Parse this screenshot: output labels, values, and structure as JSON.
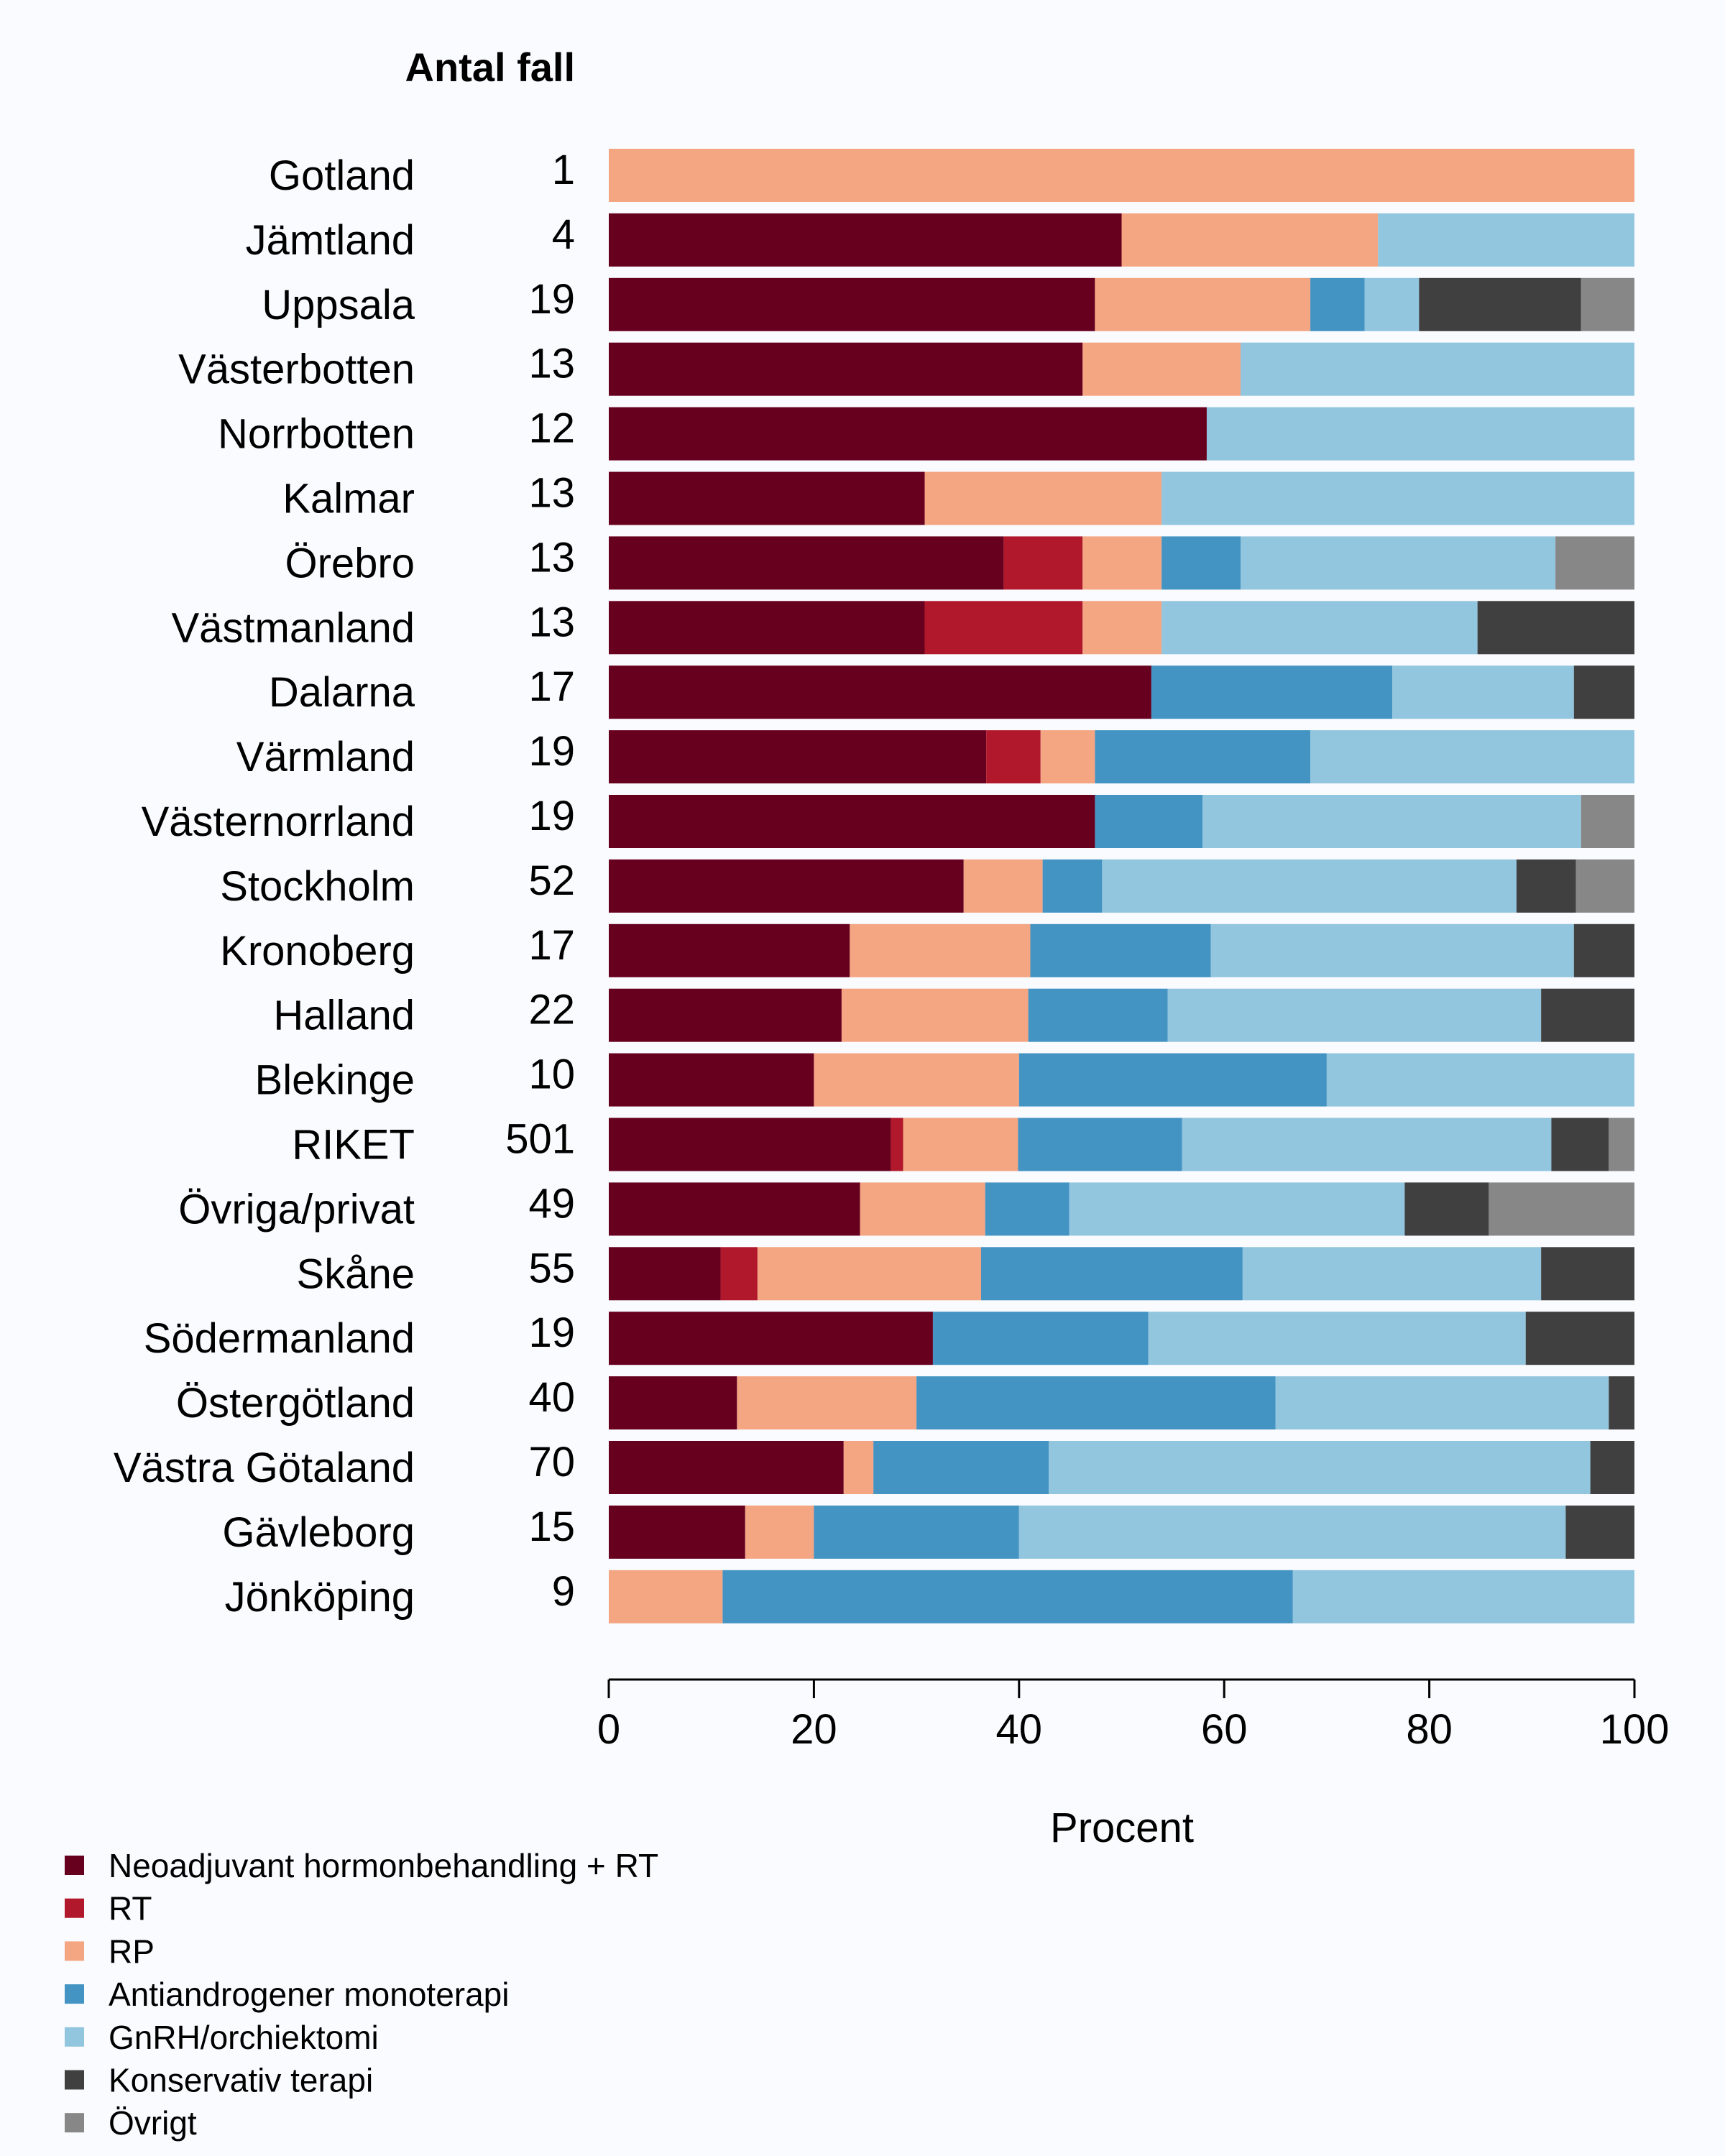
{
  "chart_data": {
    "type": "bar",
    "orientation": "horizontal",
    "stacked": true,
    "count_header": "Antal fall",
    "xlabel": "Procent",
    "xlim": [
      0,
      100
    ],
    "xticks": [
      "0",
      "20",
      "40",
      "60",
      "80",
      "100"
    ],
    "legend_position": "bottom-left",
    "grid": false,
    "series": [
      {
        "name": "Neoadjuvant hormonbehandling + RT",
        "color": "#67001f"
      },
      {
        "name": "RT",
        "color": "#b2182b"
      },
      {
        "name": "RP",
        "color": "#f4a582"
      },
      {
        "name": "Antiandrogener monoterapi",
        "color": "#4393c3"
      },
      {
        "name": "GnRH/orchiektomi",
        "color": "#92c5de"
      },
      {
        "name": "Konservativ terapi",
        "color": "#404040"
      },
      {
        "name": "Övrigt",
        "color": "#878787"
      }
    ],
    "rows": [
      {
        "label": "Gotland",
        "count": "1",
        "values": [
          0,
          0,
          100,
          0,
          0,
          0,
          0
        ]
      },
      {
        "label": "Jämtland",
        "count": "4",
        "values": [
          50,
          0,
          25,
          0,
          25,
          0,
          0
        ]
      },
      {
        "label": "Uppsala",
        "count": "19",
        "values": [
          47.4,
          0,
          21.0,
          5.3,
          5.3,
          15.8,
          5.2
        ]
      },
      {
        "label": "Västerbotten",
        "count": "13",
        "values": [
          46.2,
          0,
          15.4,
          0,
          38.4,
          0,
          0
        ]
      },
      {
        "label": "Norrbotten",
        "count": "12",
        "values": [
          58.3,
          0,
          0,
          0,
          41.7,
          0,
          0
        ]
      },
      {
        "label": "Kalmar",
        "count": "13",
        "values": [
          30.8,
          0,
          23.1,
          0,
          46.1,
          0,
          0
        ]
      },
      {
        "label": "Örebro",
        "count": "13",
        "values": [
          38.5,
          7.7,
          7.7,
          7.7,
          30.7,
          0,
          7.7
        ]
      },
      {
        "label": "Västmanland",
        "count": "13",
        "values": [
          30.8,
          15.4,
          7.7,
          0,
          30.8,
          15.3,
          0
        ]
      },
      {
        "label": "Dalarna",
        "count": "17",
        "values": [
          52.9,
          0,
          0,
          23.5,
          17.7,
          5.9,
          0
        ]
      },
      {
        "label": "Värmland",
        "count": "19",
        "values": [
          36.8,
          5.3,
          5.3,
          21.0,
          31.6,
          0,
          0
        ]
      },
      {
        "label": "Västernorrland",
        "count": "19",
        "values": [
          47.4,
          0,
          0,
          10.5,
          36.9,
          0,
          5.2
        ]
      },
      {
        "label": "Stockholm",
        "count": "52",
        "values": [
          34.6,
          0,
          7.7,
          5.8,
          40.4,
          5.8,
          5.7
        ]
      },
      {
        "label": "Kronoberg",
        "count": "17",
        "values": [
          23.5,
          0,
          17.6,
          17.6,
          35.4,
          5.9,
          0
        ]
      },
      {
        "label": "Halland",
        "count": "22",
        "values": [
          22.7,
          0,
          18.2,
          13.6,
          36.4,
          9.1,
          0
        ]
      },
      {
        "label": "Blekinge",
        "count": "10",
        "values": [
          20,
          0,
          20,
          30,
          30,
          0,
          0
        ]
      },
      {
        "label": "RIKET",
        "count": "501",
        "values": [
          27.5,
          1.2,
          11.2,
          16.0,
          36.0,
          5.6,
          2.5
        ]
      },
      {
        "label": "Övriga/privat",
        "count": "49",
        "values": [
          24.5,
          0,
          12.2,
          8.2,
          32.7,
          8.2,
          14.2
        ]
      },
      {
        "label": "Skåne",
        "count": "55",
        "values": [
          10.9,
          3.6,
          21.8,
          25.5,
          29.1,
          9.1,
          0
        ]
      },
      {
        "label": "Södermanland",
        "count": "19",
        "values": [
          31.6,
          0,
          0,
          21.0,
          36.8,
          10.6,
          0
        ]
      },
      {
        "label": "Östergötland",
        "count": "40",
        "values": [
          12.5,
          0,
          17.5,
          35.0,
          32.5,
          2.5,
          0
        ]
      },
      {
        "label": "Västra Götaland",
        "count": "70",
        "values": [
          22.9,
          0,
          2.9,
          17.1,
          52.8,
          4.3,
          0
        ]
      },
      {
        "label": "Gävleborg",
        "count": "15",
        "values": [
          13.3,
          0,
          6.7,
          20.0,
          53.3,
          6.7,
          0
        ]
      },
      {
        "label": "Jönköping",
        "count": "9",
        "values": [
          0,
          0,
          11.1,
          55.6,
          33.3,
          0,
          0
        ]
      }
    ]
  }
}
